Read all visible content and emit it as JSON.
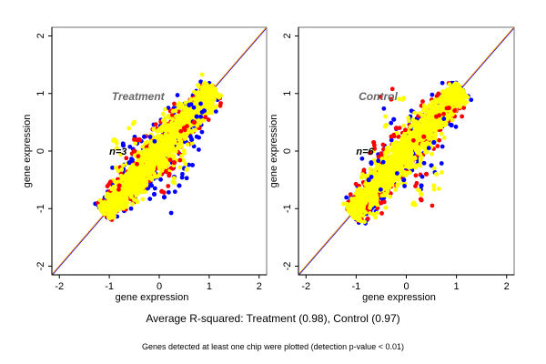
{
  "chart_data": [
    {
      "type": "scatter",
      "title": "Treatment",
      "annotation": "n=3",
      "xlabel": "gene expression",
      "ylabel": "gene expression",
      "xlim": [
        -2.15,
        2.15
      ],
      "ylim": [
        -2.15,
        2.15
      ],
      "xticks": [
        "-2",
        "-1",
        "0",
        "1",
        "2"
      ],
      "yticks": [
        "-2",
        "-1",
        "0",
        "1",
        "2"
      ],
      "reference_line": {
        "slope": 1,
        "intercept": 0,
        "colors": [
          "#0000ff",
          "#ff8c00"
        ]
      },
      "series": [
        {
          "name": "blue",
          "color": "#0000ff",
          "spread": 0.13,
          "points": [
            [
              -0.72,
              0.1
            ],
            [
              -0.6,
              -0.2
            ],
            [
              -0.3,
              0.25
            ],
            [
              0.6,
              0.8
            ],
            [
              0.75,
              0.6
            ],
            [
              0.9,
              0.7
            ],
            [
              0.5,
              -0.3
            ],
            [
              0.3,
              -0.45
            ],
            [
              0.1,
              -0.8
            ],
            [
              -0.1,
              -0.75
            ],
            [
              0.65,
              0.2
            ],
            [
              0.4,
              -0.6
            ]
          ]
        },
        {
          "name": "red",
          "color": "#ff0000",
          "spread": 0.09,
          "points": [
            [
              -0.4,
              0.2
            ],
            [
              -0.5,
              0.0
            ],
            [
              0.2,
              -0.4
            ],
            [
              0.3,
              -0.2
            ],
            [
              0.5,
              0.4
            ],
            [
              0.7,
              0.5
            ],
            [
              -0.8,
              -0.6
            ],
            [
              0.05,
              -0.7
            ]
          ]
        },
        {
          "name": "yellow",
          "color": "#ffff00",
          "spread": 0.06,
          "points": [
            [
              -0.9,
              0.2
            ],
            [
              -0.85,
              0.05
            ],
            [
              0.3,
              -0.55
            ],
            [
              0.55,
              -0.32
            ],
            [
              0.45,
              0.8
            ],
            [
              -0.5,
              0.5
            ]
          ]
        }
      ]
    },
    {
      "type": "scatter",
      "title": "Control",
      "annotation": "n=6",
      "xlabel": "gene expression",
      "ylabel": "gene expression",
      "xlim": [
        -2.15,
        2.15
      ],
      "ylim": [
        -2.15,
        2.15
      ],
      "xticks": [
        "-2",
        "-1",
        "0",
        "1",
        "2"
      ],
      "yticks": [
        "-2",
        "-1",
        "0",
        "1",
        "2"
      ],
      "reference_line": {
        "slope": 1,
        "intercept": 0,
        "colors": [
          "#0000ff",
          "#ff8c00"
        ]
      },
      "series": [
        {
          "name": "blue",
          "color": "#0000ff",
          "spread": 0.1,
          "points": [
            [
              -0.7,
              -0.2
            ],
            [
              -0.75,
              -0.5
            ],
            [
              -0.25,
              0.55
            ],
            [
              0.5,
              -0.25
            ],
            [
              0.55,
              0.15
            ],
            [
              0.9,
              0.45
            ],
            [
              -0.05,
              -0.5
            ],
            [
              0.3,
              -0.6
            ]
          ]
        },
        {
          "name": "red",
          "color": "#ff0000",
          "spread": 0.14,
          "points": [
            [
              -0.3,
              0.9
            ],
            [
              -0.65,
              0.15
            ],
            [
              0.35,
              0.25
            ],
            [
              0.6,
              0.6
            ],
            [
              0.85,
              0.75
            ],
            [
              0.4,
              -0.4
            ],
            [
              -0.5,
              -0.9
            ],
            [
              0.3,
              -0.85
            ],
            [
              -0.2,
              0.4
            ]
          ]
        },
        {
          "name": "yellow",
          "color": "#ffff00",
          "spread": 0.07,
          "points": [
            [
              -0.05,
              0.92
            ],
            [
              -0.65,
              -1.1
            ],
            [
              0.15,
              -0.9
            ],
            [
              0.55,
              -0.6
            ],
            [
              0.6,
              -0.4
            ],
            [
              -0.4,
              0.45
            ],
            [
              0.3,
              -0.75
            ]
          ]
        }
      ]
    }
  ],
  "captions": {
    "summary": "Average R-squared: Treatment (0.98), Control (0.97)",
    "footnote": "Genes detected at least one chip were plotted (detection p-value < 0.01)"
  }
}
